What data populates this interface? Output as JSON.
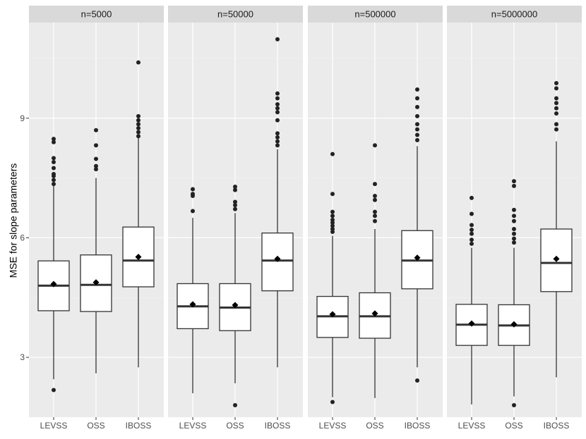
{
  "chart_data": {
    "type": "boxplot",
    "ylabel": "MSE for slope parameters",
    "xlabel": "",
    "ylim": [
      1.5,
      11.4
    ],
    "yticks": [
      3,
      6,
      9
    ],
    "categories": [
      "LEVSS",
      "OSS",
      "IBOSS"
    ],
    "colors": {
      "panel_bg": "#ebebeb",
      "strip_bg": "#d9d9d9",
      "grid_major": "#ffffff",
      "grid_minor": "#f2f2f2",
      "box_fill": "#ffffff",
      "line": "#333333",
      "point": "#222222"
    },
    "panels": [
      {
        "label": "n=5000",
        "groups": [
          {
            "name": "LEVSS",
            "q1": 4.17,
            "median": 4.8,
            "q3": 5.42,
            "lower": 2.45,
            "upper": 7.3,
            "mean": 4.84,
            "outliers": [
              2.18,
              7.35,
              7.45,
              7.55,
              7.6,
              7.75,
              7.9,
              8.0,
              8.4,
              8.48
            ]
          },
          {
            "name": "OSS",
            "q1": 4.15,
            "median": 4.82,
            "q3": 5.57,
            "lower": 2.6,
            "upper": 7.5,
            "mean": 4.88,
            "outliers": [
              7.72,
              7.8,
              7.98,
              8.32,
              8.7
            ]
          },
          {
            "name": "IBOSS",
            "q1": 4.77,
            "median": 5.43,
            "q3": 6.27,
            "lower": 2.75,
            "upper": 8.5,
            "mean": 5.52,
            "outliers": [
              8.55,
              8.65,
              8.75,
              8.85,
              8.95,
              9.05,
              10.4
            ]
          }
        ]
      },
      {
        "label": "n=50000",
        "groups": [
          {
            "name": "LEVSS",
            "q1": 3.72,
            "median": 4.28,
            "q3": 4.85,
            "lower": 2.1,
            "upper": 6.5,
            "mean": 4.33,
            "outliers": [
              6.67,
              7.05,
              7.1,
              7.22
            ]
          },
          {
            "name": "OSS",
            "q1": 3.67,
            "median": 4.25,
            "q3": 4.85,
            "lower": 2.35,
            "upper": 6.62,
            "mean": 4.31,
            "outliers": [
              1.8,
              6.72,
              6.82,
              6.9,
              7.2,
              7.28
            ]
          },
          {
            "name": "IBOSS",
            "q1": 4.67,
            "median": 5.43,
            "q3": 6.12,
            "lower": 2.75,
            "upper": 8.22,
            "mean": 5.47,
            "outliers": [
              8.32,
              8.42,
              8.52,
              8.62,
              8.95,
              9.15,
              9.25,
              9.35,
              9.5,
              9.62,
              10.98
            ]
          }
        ]
      },
      {
        "label": "n=500000",
        "groups": [
          {
            "name": "LEVSS",
            "q1": 3.5,
            "median": 4.03,
            "q3": 4.53,
            "lower": 2.0,
            "upper": 6.05,
            "mean": 4.08,
            "outliers": [
              1.88,
              6.15,
              6.22,
              6.3,
              6.38,
              6.45,
              6.55,
              6.65,
              7.1,
              8.1
            ]
          },
          {
            "name": "OSS",
            "q1": 3.48,
            "median": 4.03,
            "q3": 4.62,
            "lower": 1.98,
            "upper": 6.22,
            "mean": 4.1,
            "outliers": [
              6.42,
              6.55,
              6.65,
              6.95,
              7.05,
              7.35,
              8.32
            ]
          },
          {
            "name": "IBOSS",
            "q1": 4.72,
            "median": 5.43,
            "q3": 6.18,
            "lower": 2.75,
            "upper": 8.3,
            "mean": 5.5,
            "outliers": [
              2.42,
              8.45,
              8.58,
              8.72,
              8.85,
              9.05,
              9.28,
              9.5,
              9.72
            ]
          }
        ]
      },
      {
        "label": "n=5000000",
        "groups": [
          {
            "name": "LEVSS",
            "q1": 3.3,
            "median": 3.82,
            "q3": 4.33,
            "lower": 1.82,
            "upper": 5.75,
            "mean": 3.85,
            "outliers": [
              5.85,
              5.95,
              6.1,
              6.2,
              6.32,
              6.6,
              7.0
            ]
          },
          {
            "name": "OSS",
            "q1": 3.3,
            "median": 3.8,
            "q3": 4.32,
            "lower": 2.02,
            "upper": 5.75,
            "mean": 3.83,
            "outliers": [
              1.8,
              5.88,
              5.98,
              6.1,
              6.22,
              6.42,
              6.55,
              6.7,
              7.3,
              7.42
            ]
          },
          {
            "name": "IBOSS",
            "q1": 4.65,
            "median": 5.37,
            "q3": 6.22,
            "lower": 2.5,
            "upper": 8.42,
            "mean": 5.47,
            "outliers": [
              8.72,
              8.85,
              9.12,
              9.25,
              9.38,
              9.5,
              9.75,
              9.88
            ]
          }
        ]
      }
    ]
  }
}
